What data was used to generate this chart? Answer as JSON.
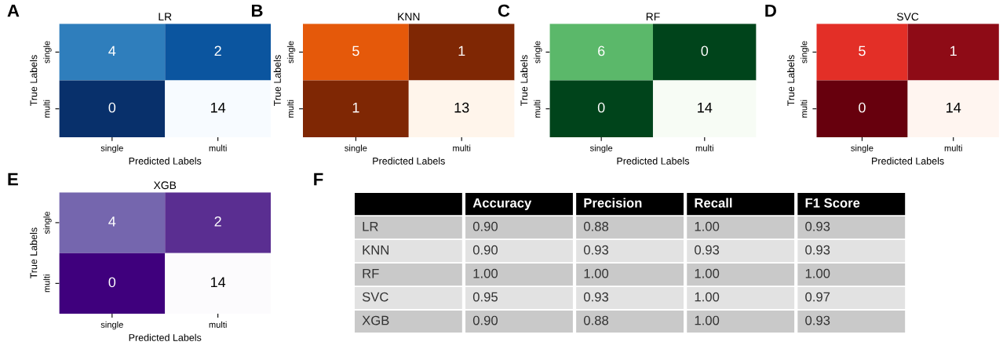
{
  "chart_data": [
    {
      "type": "heatmap",
      "title": "LR",
      "annotations": [
        "A"
      ],
      "xlabel": "Predicted Labels",
      "ylabel": "True Labels",
      "categories": [
        "single",
        "multi"
      ],
      "y_categories": [
        "single",
        "multi"
      ],
      "cells": [
        [
          4,
          2
        ],
        [
          0,
          14
        ]
      ],
      "colors": [
        "#2f7ebc",
        "#0b559f",
        "#08306b",
        "#f7fbff"
      ],
      "data_labels": true
    },
    {
      "type": "heatmap",
      "title": "KNN",
      "annotations": [
        "B"
      ],
      "xlabel": "Predicted Labels",
      "ylabel": "True Labels",
      "categories": [
        "single",
        "multi"
      ],
      "y_categories": [
        "single",
        "multi"
      ],
      "cells": [
        [
          5,
          1
        ],
        [
          1,
          13
        ]
      ],
      "colors": [
        "#e5590a",
        "#7f2704",
        "#7f2704",
        "#fff5eb"
      ],
      "data_labels": true
    },
    {
      "type": "heatmap",
      "title": "RF",
      "annotations": [
        "C"
      ],
      "xlabel": "Predicted Labels",
      "ylabel": "True Labels",
      "categories": [
        "single",
        "multi"
      ],
      "y_categories": [
        "single",
        "multi"
      ],
      "cells": [
        [
          6,
          0
        ],
        [
          0,
          14
        ]
      ],
      "colors": [
        "#5bb86a",
        "#00441b",
        "#00441b",
        "#f7fcf5"
      ],
      "data_labels": true
    },
    {
      "type": "heatmap",
      "title": "SVC",
      "annotations": [
        "D"
      ],
      "xlabel": "Predicted Labels",
      "ylabel": "True Labels",
      "categories": [
        "single",
        "multi"
      ],
      "y_categories": [
        "single",
        "multi"
      ],
      "cells": [
        [
          5,
          1
        ],
        [
          0,
          14
        ]
      ],
      "colors": [
        "#e32f27",
        "#8e0b16",
        "#67000d",
        "#fff5f0"
      ],
      "data_labels": true
    },
    {
      "type": "heatmap",
      "title": "XGB",
      "annotations": [
        "E"
      ],
      "xlabel": "Predicted Labels",
      "ylabel": "True Labels",
      "categories": [
        "single",
        "multi"
      ],
      "y_categories": [
        "single",
        "multi"
      ],
      "cells": [
        [
          4,
          2
        ],
        [
          0,
          14
        ]
      ],
      "colors": [
        "#7566ae",
        "#5a2e91",
        "#3f007d",
        "#fcfbfd"
      ],
      "data_labels": true
    },
    {
      "type": "other",
      "annotations": [
        "F"
      ],
      "categories": [
        null,
        "Accuracy",
        "Precision",
        "Recall",
        "F1 Score"
      ],
      "y_categories": [
        "LR",
        "KNN",
        "RF",
        "SVC",
        "XGB"
      ],
      "cell_labels": [
        [
          "0.90",
          "0.88",
          "1.00",
          "0.93"
        ],
        [
          "0.90",
          "0.93",
          "0.93",
          "0.93"
        ],
        [
          "1.00",
          "1.00",
          "1.00",
          "1.00"
        ],
        [
          "0.95",
          "0.93",
          "1.00",
          "0.97"
        ],
        [
          "0.90",
          "0.88",
          "1.00",
          "0.93"
        ]
      ],
      "colors": [
        "#000000",
        "#000000",
        "#000000",
        "#000000",
        "#000000",
        "#c9c9c9",
        "#c9c9c9",
        "#c9c9c9",
        "#c9c9c9",
        "#c9c9c9",
        "#e2e2e2",
        "#e2e2e2",
        "#e2e2e2",
        "#e2e2e2",
        "#e2e2e2",
        "#c9c9c9",
        "#c9c9c9",
        "#c9c9c9",
        "#c9c9c9",
        "#c9c9c9",
        "#e2e2e2",
        "#e2e2e2",
        "#e2e2e2",
        "#e2e2e2",
        "#e2e2e2",
        "#c9c9c9",
        "#c9c9c9",
        "#c9c9c9",
        "#c9c9c9",
        "#c9c9c9"
      ]
    }
  ]
}
